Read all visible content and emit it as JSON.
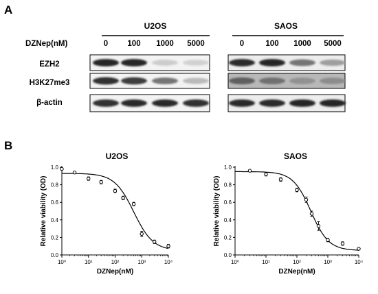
{
  "panel_a": {
    "letter": "A",
    "treatment_label": "DZNep(nM)",
    "doses": [
      "0",
      "100",
      "1000",
      "5000"
    ],
    "cell_lines": [
      "U2OS",
      "SAOS"
    ],
    "rows": [
      "EZH2",
      "H3K27me3",
      "β-actin"
    ],
    "band_intensity": {
      "U2OS": {
        "EZH2": [
          0.95,
          0.95,
          0.22,
          0.2
        ],
        "H3K27me3": [
          0.9,
          0.85,
          0.6,
          0.3
        ],
        "β-actin": [
          0.9,
          0.92,
          0.92,
          0.9
        ]
      },
      "SAOS": {
        "EZH2": [
          0.92,
          0.95,
          0.6,
          0.42
        ],
        "H3K27me3": [
          0.7,
          0.62,
          0.48,
          0.5
        ],
        "β-actin": [
          0.92,
          0.92,
          0.95,
          0.95
        ]
      }
    }
  },
  "panel_b": {
    "letter": "B"
  },
  "chart_data": [
    {
      "type": "scatter",
      "title": "U2OS",
      "xlabel": "DZNep(nM)",
      "ylabel": "Relative viability (OD)",
      "xscale": "log",
      "xlim": [
        1,
        10000
      ],
      "ylim": [
        0,
        1.0
      ],
      "xticks": [
        "10⁰",
        "10¹",
        "10²",
        "10³",
        "10⁴"
      ],
      "yticks": [
        "0.0",
        "0.2",
        "0.4",
        "0.6",
        "0.8",
        "1.0"
      ],
      "x": [
        1,
        3,
        10,
        30,
        100,
        200,
        500,
        1000,
        3000,
        10000
      ],
      "y": [
        0.98,
        0.94,
        0.87,
        0.83,
        0.73,
        0.65,
        0.58,
        0.24,
        0.15,
        0.1
      ],
      "error": [
        0.01,
        0.01,
        0.02,
        0.02,
        0.02,
        0.02,
        0.02,
        0.03,
        0.02,
        0.02
      ],
      "fit": {
        "top": 0.93,
        "bottom": 0.05,
        "log_ic50": 2.7,
        "hill": 1.2
      }
    },
    {
      "type": "scatter",
      "title": "SAOS",
      "xlabel": "DZNep(nM)",
      "ylabel": "Relative viability (OD)",
      "xscale": "log",
      "xlim": [
        1,
        10000
      ],
      "ylim": [
        0,
        1.0
      ],
      "xticks": [
        "10⁰",
        "10¹",
        "10²",
        "10³",
        "10⁴"
      ],
      "yticks": [
        "0.0",
        "0.2",
        "0.4",
        "0.6",
        "0.8",
        "1.0"
      ],
      "x": [
        3,
        10,
        30,
        100,
        200,
        300,
        500,
        1000,
        3000,
        10000
      ],
      "y": [
        0.96,
        0.92,
        0.86,
        0.74,
        0.63,
        0.47,
        0.33,
        0.17,
        0.13,
        0.07
      ],
      "error": [
        0.01,
        0.02,
        0.02,
        0.02,
        0.03,
        0.03,
        0.05,
        0.02,
        0.02,
        0.01
      ],
      "fit": {
        "top": 0.95,
        "bottom": 0.05,
        "log_ic50": 2.45,
        "hill": 1.5
      }
    }
  ]
}
